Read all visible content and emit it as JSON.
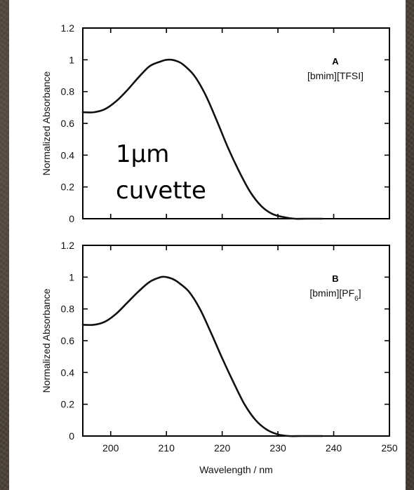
{
  "chart_data": [
    {
      "type": "line",
      "panel_letter": "A",
      "label": "[bmim][TFSI]",
      "label_subscript": "",
      "label_suffix": "",
      "ylabel": "Normalized Absorbance",
      "xlabel": "",
      "xlim": [
        195,
        250
      ],
      "ylim": [
        0,
        1.2
      ],
      "xticks": [
        200,
        210,
        220,
        230,
        240,
        250
      ],
      "yticks": [
        "0",
        "0.2",
        "0.4",
        "0.6",
        "0.8",
        "1",
        "1.2"
      ],
      "show_x_tick_labels": false,
      "annotation_lines": [
        "1μm",
        "cuvette"
      ],
      "series": [
        {
          "x": [
            195,
            197,
            199,
            201,
            203,
            205,
            207,
            209,
            210,
            211,
            212,
            213,
            215,
            217,
            219,
            221,
            223,
            225,
            227,
            229,
            231,
            233,
            235,
            237,
            238
          ],
          "values": [
            0.67,
            0.67,
            0.69,
            0.74,
            0.81,
            0.89,
            0.96,
            0.99,
            1.0,
            1.0,
            0.99,
            0.97,
            0.9,
            0.78,
            0.62,
            0.45,
            0.3,
            0.17,
            0.08,
            0.03,
            0.01,
            0.0,
            0.0,
            0.0,
            0.0
          ]
        }
      ]
    },
    {
      "type": "line",
      "panel_letter": "B",
      "label": "[bmim][PF",
      "label_subscript": "6",
      "label_suffix": "]",
      "ylabel": "Normalized Absorbance",
      "xlabel": "Wavelength / nm",
      "xlim": [
        195,
        250
      ],
      "ylim": [
        0,
        1.2
      ],
      "xticks": [
        200,
        210,
        220,
        230,
        240,
        250
      ],
      "yticks": [
        "0",
        "0.2",
        "0.4",
        "0.6",
        "0.8",
        "1",
        "1.2"
      ],
      "show_x_tick_labels": true,
      "annotation_lines": [],
      "series": [
        {
          "x": [
            195,
            197,
            199,
            201,
            203,
            205,
            207,
            209,
            210,
            211,
            212,
            214,
            216,
            218,
            220,
            222,
            224,
            226,
            228,
            230,
            232,
            234,
            236,
            238
          ],
          "values": [
            0.7,
            0.7,
            0.72,
            0.77,
            0.84,
            0.91,
            0.97,
            1.0,
            1.0,
            0.99,
            0.97,
            0.91,
            0.8,
            0.65,
            0.49,
            0.34,
            0.2,
            0.1,
            0.04,
            0.01,
            0.0,
            0.0,
            0.0,
            0.0
          ]
        }
      ]
    }
  ]
}
